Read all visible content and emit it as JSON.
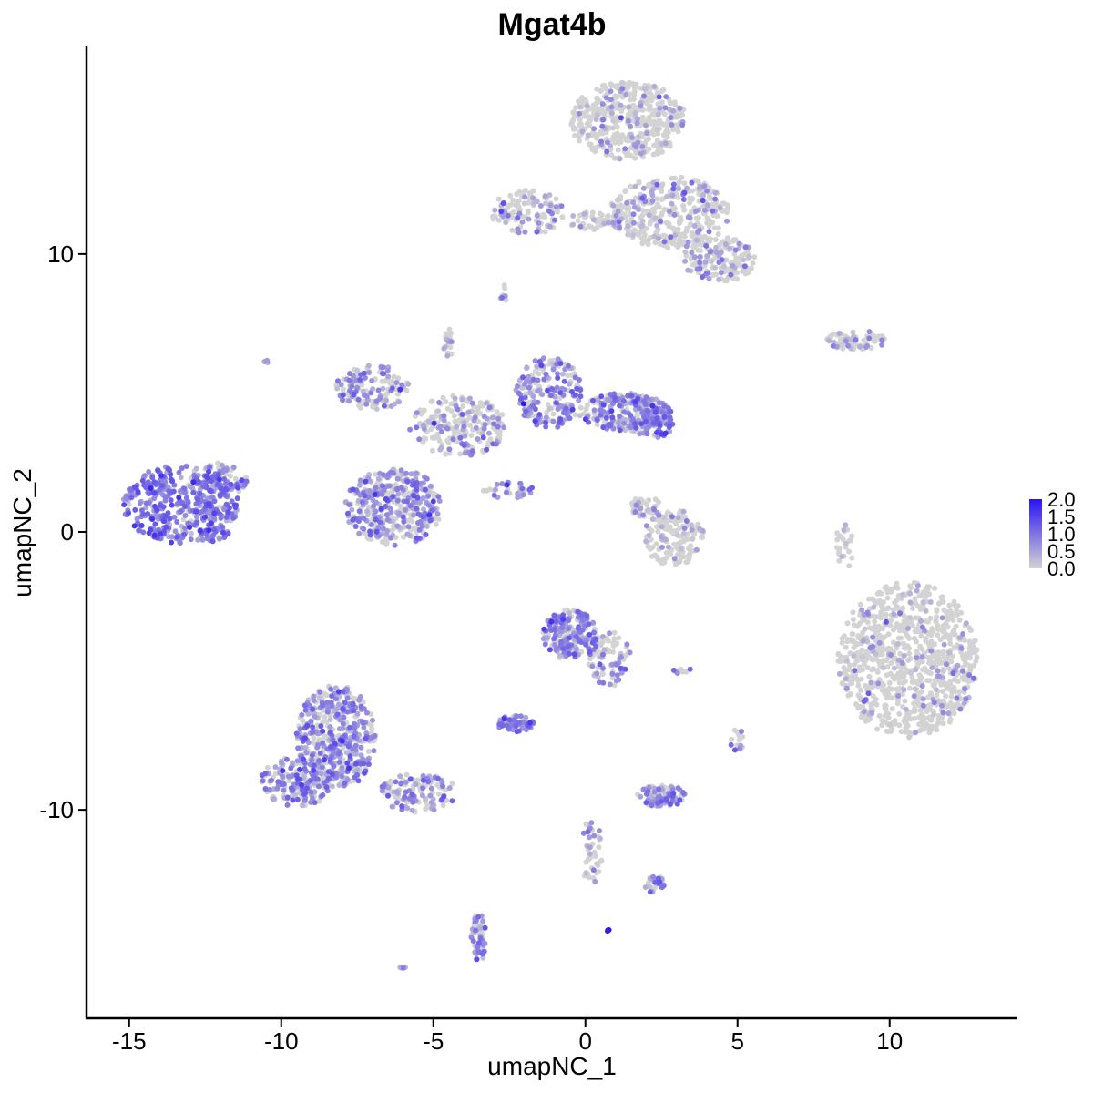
{
  "chart_data": {
    "type": "scatter",
    "title": "Mgat4b",
    "xlabel": "umapNC_1",
    "ylabel": "umapNC_2",
    "xlim": [
      -16.4,
      14.2
    ],
    "ylim": [
      -17.5,
      17.5
    ],
    "x_ticks": [
      -15,
      -10,
      -5,
      0,
      5,
      10
    ],
    "x_tick_labels": [
      "-15",
      "-10",
      "-5",
      "0",
      "5",
      "10"
    ],
    "y_ticks": [
      -10,
      0,
      10
    ],
    "y_tick_labels": [
      "-10",
      "0",
      "10"
    ],
    "grid": false,
    "legend": {
      "placement": "right",
      "type": "colorbar",
      "range": [
        0,
        2
      ],
      "labels": [
        "2.0",
        "1.5",
        "1.0",
        "0.5",
        "0.0"
      ],
      "low_color": "#d3d3d3",
      "high_color": "#2a13f2"
    },
    "clusters": [
      {
        "cx": -13.3,
        "cy": 1.0,
        "rx": 1.9,
        "ry": 1.4,
        "n": 420,
        "expr": 0.85
      },
      {
        "cx": -11.9,
        "cy": 1.9,
        "rx": 0.8,
        "ry": 0.6,
        "n": 60,
        "expr": 0.7
      },
      {
        "cx": -12.3,
        "cy": -0.1,
        "rx": 0.6,
        "ry": 0.25,
        "n": 25,
        "expr": 0.75
      },
      {
        "cx": -6.3,
        "cy": 0.9,
        "rx": 1.6,
        "ry": 1.4,
        "n": 380,
        "expr": 0.55
      },
      {
        "cx": -7.0,
        "cy": 5.2,
        "rx": 1.2,
        "ry": 0.8,
        "n": 140,
        "expr": 0.45
      },
      {
        "cx": -4.2,
        "cy": 3.8,
        "rx": 1.6,
        "ry": 1.1,
        "n": 220,
        "expr": 0.3
      },
      {
        "cx": -1.2,
        "cy": 5.0,
        "rx": 1.1,
        "ry": 1.3,
        "n": 200,
        "expr": 0.6
      },
      {
        "cx": 1.3,
        "cy": 4.3,
        "rx": 1.5,
        "ry": 0.7,
        "n": 220,
        "expr": 0.55
      },
      {
        "cx": 2.2,
        "cy": 4.0,
        "rx": 0.7,
        "ry": 0.7,
        "n": 100,
        "expr": 0.8
      },
      {
        "cx": -4.5,
        "cy": 6.8,
        "rx": 0.2,
        "ry": 0.5,
        "n": 20,
        "expr": 0.3
      },
      {
        "cx": -2.5,
        "cy": 1.5,
        "rx": 0.9,
        "ry": 0.3,
        "n": 30,
        "expr": 0.6
      },
      {
        "cx": -8.2,
        "cy": -7.4,
        "rx": 1.3,
        "ry": 1.9,
        "n": 460,
        "expr": 0.55
      },
      {
        "cx": -9.5,
        "cy": -9.0,
        "rx": 1.2,
        "ry": 0.9,
        "n": 180,
        "expr": 0.6
      },
      {
        "cx": -5.5,
        "cy": -9.4,
        "rx": 1.3,
        "ry": 0.7,
        "n": 120,
        "expr": 0.45
      },
      {
        "cx": -3.5,
        "cy": -14.6,
        "rx": 0.25,
        "ry": 0.9,
        "n": 60,
        "expr": 0.6
      },
      {
        "cx": -0.5,
        "cy": -3.7,
        "rx": 0.9,
        "ry": 0.9,
        "n": 200,
        "expr": 0.65
      },
      {
        "cx": 0.8,
        "cy": -4.6,
        "rx": 0.7,
        "ry": 1.0,
        "n": 80,
        "expr": 0.4
      },
      {
        "cx": -2.3,
        "cy": -6.9,
        "rx": 0.6,
        "ry": 0.3,
        "n": 60,
        "expr": 0.75
      },
      {
        "cx": 2.5,
        "cy": -9.5,
        "rx": 0.8,
        "ry": 0.4,
        "n": 90,
        "expr": 0.65
      },
      {
        "cx": 2.3,
        "cy": -12.7,
        "rx": 0.35,
        "ry": 0.35,
        "n": 25,
        "expr": 0.5
      },
      {
        "cx": 0.2,
        "cy": -11.5,
        "rx": 0.35,
        "ry": 1.2,
        "n": 40,
        "expr": 0.25
      },
      {
        "cx": 2.9,
        "cy": -0.2,
        "rx": 1.0,
        "ry": 1.0,
        "n": 150,
        "expr": 0.15
      },
      {
        "cx": 2.0,
        "cy": 0.9,
        "rx": 0.5,
        "ry": 0.5,
        "n": 40,
        "expr": 0.25
      },
      {
        "cx": 1.4,
        "cy": 14.8,
        "rx": 1.9,
        "ry": 1.4,
        "n": 450,
        "expr": 0.08
      },
      {
        "cx": 2.8,
        "cy": 11.5,
        "rx": 2.0,
        "ry": 1.3,
        "n": 360,
        "expr": 0.15
      },
      {
        "cx": 4.4,
        "cy": 9.8,
        "rx": 1.2,
        "ry": 0.8,
        "n": 150,
        "expr": 0.25
      },
      {
        "cx": -1.9,
        "cy": 11.5,
        "rx": 1.2,
        "ry": 0.8,
        "n": 120,
        "expr": 0.3
      },
      {
        "cx": 0.5,
        "cy": 11.2,
        "rx": 1.2,
        "ry": 0.35,
        "n": 60,
        "expr": 0.15
      },
      {
        "cx": 8.9,
        "cy": 6.9,
        "rx": 1.0,
        "ry": 0.35,
        "n": 70,
        "expr": 0.25
      },
      {
        "cx": 10.6,
        "cy": -4.6,
        "rx": 2.3,
        "ry": 2.8,
        "n": 900,
        "expr": 0.05
      },
      {
        "cx": 8.5,
        "cy": -0.5,
        "rx": 0.3,
        "ry": 1.1,
        "n": 25,
        "expr": 0.05
      },
      {
        "cx": 5.0,
        "cy": -7.5,
        "rx": 0.3,
        "ry": 0.4,
        "n": 15,
        "expr": 0.4
      },
      {
        "cx": 3.2,
        "cy": -5.0,
        "rx": 0.3,
        "ry": 0.15,
        "n": 8,
        "expr": 0.3
      },
      {
        "cx": -2.7,
        "cy": 8.6,
        "rx": 0.2,
        "ry": 0.3,
        "n": 8,
        "expr": 0.45
      },
      {
        "cx": -6.0,
        "cy": -15.7,
        "rx": 0.1,
        "ry": 0.1,
        "n": 5,
        "expr": 0.6
      },
      {
        "cx": -10.5,
        "cy": 6.1,
        "rx": 0.1,
        "ry": 0.1,
        "n": 4,
        "expr": 0.5
      },
      {
        "cx": 0.7,
        "cy": -14.3,
        "rx": 0.08,
        "ry": 0.08,
        "n": 3,
        "expr": 1.9
      }
    ]
  }
}
